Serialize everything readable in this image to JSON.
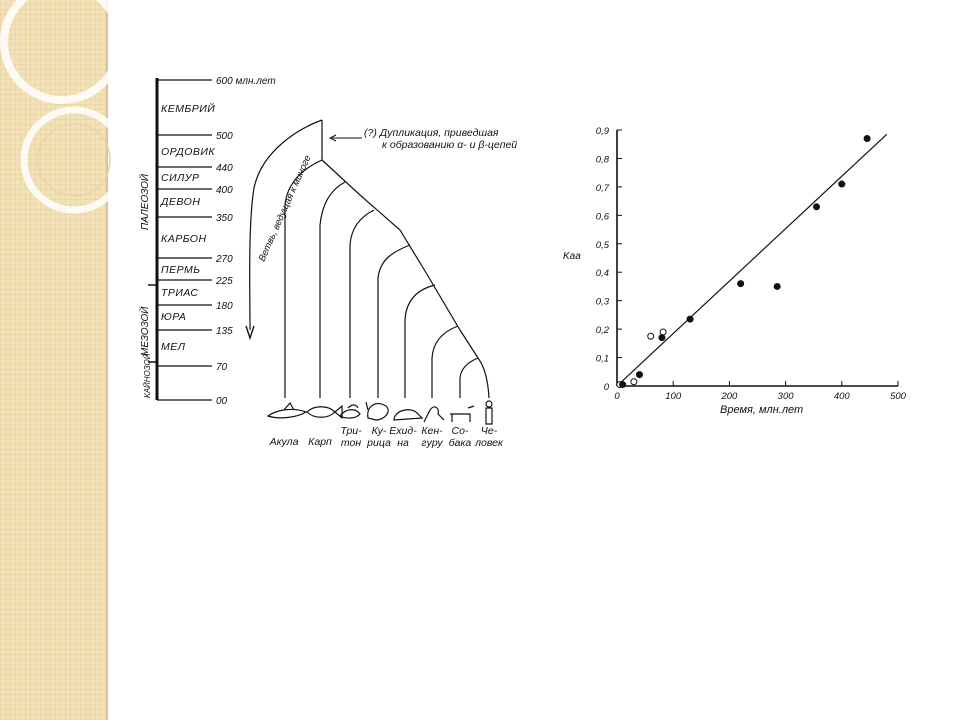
{
  "timescale": {
    "eras": [
      "ПАЛЕОЗОЙ",
      "МЕЗОЗОЙ",
      "КАЙНОЗОЙ"
    ],
    "periods": [
      "КЕМБРИЙ",
      "ОРДОВИК",
      "СИЛУР",
      "ДЕВОН",
      "КАРБОН",
      "ПЕРМЬ",
      "ТРИАС",
      "ЮРА",
      "МЕЛ"
    ],
    "ticks": [
      "600 млн.лет",
      "500",
      "440",
      "400",
      "350",
      "270",
      "225",
      "180",
      "135",
      "70",
      "00"
    ]
  },
  "tree": {
    "branch_label": "Ветвь, ведущая к миноге",
    "duplication_label": "(?) Дупликация, приведшая к образованию α- и β-цепей",
    "species": [
      {
        "label": "Акула"
      },
      {
        "label": "Карп"
      },
      {
        "label": "Три- тон"
      },
      {
        "label": "Ку- рица"
      },
      {
        "label": "Ехид- на"
      },
      {
        "label": "Кен- гуру"
      },
      {
        "label": "Со- бака"
      },
      {
        "label": "Че- ловек"
      }
    ]
  },
  "chart_data": {
    "type": "scatter",
    "xlabel": "Время, млн.лет",
    "ylabel": "Kaa",
    "xlim": [
      0,
      500
    ],
    "ylim": [
      0,
      0.9
    ],
    "x_ticks": [
      "0",
      "100",
      "200",
      "300",
      "400",
      "500"
    ],
    "y_ticks": [
      "0",
      "0,1",
      "0,2",
      "0,3",
      "0,4",
      "0,5",
      "0,6",
      "0,7",
      "0,8",
      "0,9"
    ],
    "series": [
      {
        "marker": "open",
        "points": [
          [
            5,
            0.005
          ],
          [
            30,
            0.015
          ],
          [
            60,
            0.175
          ],
          [
            82,
            0.19
          ]
        ]
      },
      {
        "marker": "filled",
        "points": [
          [
            10,
            0.005
          ],
          [
            40,
            0.04
          ],
          [
            80,
            0.17
          ],
          [
            130,
            0.235
          ],
          [
            220,
            0.36
          ],
          [
            285,
            0.35
          ],
          [
            355,
            0.63
          ],
          [
            400,
            0.71
          ],
          [
            445,
            0.87
          ]
        ]
      }
    ],
    "fit_line": [
      [
        0,
        0
      ],
      [
        480,
        0.885
      ]
    ]
  }
}
